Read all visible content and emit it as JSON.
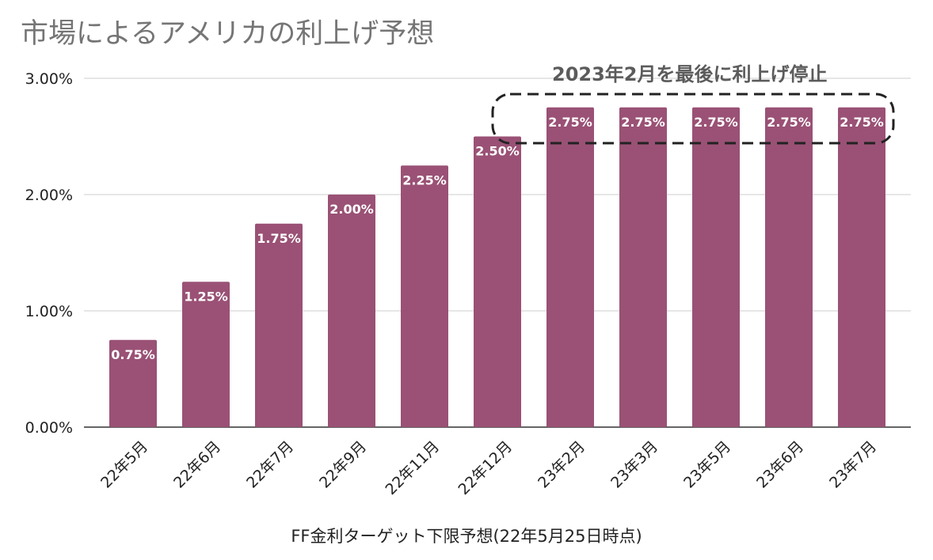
{
  "chart_data": {
    "type": "bar",
    "title": "市場によるアメリカの利上げ予想",
    "xlabel": "FF金利ターゲット下限予想(22年5月25日時点)",
    "ylabel": "",
    "categories": [
      "22年5月",
      "22年6月",
      "22年7月",
      "22年9月",
      "22年11月",
      "22年12月",
      "23年2月",
      "23年3月",
      "23年5月",
      "23年6月",
      "23年7月"
    ],
    "values": [
      0.75,
      1.25,
      1.75,
      2.0,
      2.25,
      2.5,
      2.75,
      2.75,
      2.75,
      2.75,
      2.75
    ],
    "data_labels": [
      "0.75%",
      "1.25%",
      "1.75%",
      "2.00%",
      "2.25%",
      "2.50%",
      "2.75%",
      "2.75%",
      "2.75%",
      "2.75%",
      "2.75%"
    ],
    "ylim": [
      0,
      3
    ],
    "yticks": [
      0,
      1,
      2,
      3
    ],
    "ytick_labels": [
      "0.00%",
      "1.00%",
      "2.00%",
      "3.00%"
    ],
    "grid": true,
    "legend": "none",
    "bar_color": "#9a5175",
    "annotation": {
      "text": "2023年2月を最後に利上げ停止",
      "highlight_categories": [
        "23年2月",
        "23年3月",
        "23年5月",
        "23年6月",
        "23年7月"
      ]
    }
  }
}
